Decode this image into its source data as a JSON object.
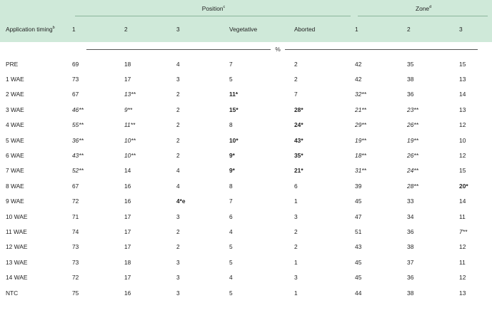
{
  "header": {
    "row_label": "Application timing",
    "row_label_sup": "b",
    "position_label": "Position",
    "position_sup": "c",
    "zone_label": "Zone",
    "zone_sup": "d",
    "columns": [
      "1",
      "2",
      "3",
      "Vegetative",
      "Aborted",
      "1",
      "2",
      "3"
    ],
    "unit": "%"
  },
  "rows": [
    {
      "label": "PRE",
      "cells": [
        {
          "v": "69"
        },
        {
          "v": "18"
        },
        {
          "v": "4"
        },
        {
          "v": "7"
        },
        {
          "v": "2"
        },
        {
          "v": "42"
        },
        {
          "v": "35"
        },
        {
          "v": "15"
        }
      ]
    },
    {
      "label": "1 WAE",
      "cells": [
        {
          "v": "73"
        },
        {
          "v": "17"
        },
        {
          "v": "3"
        },
        {
          "v": "5"
        },
        {
          "v": "2"
        },
        {
          "v": "42"
        },
        {
          "v": "38"
        },
        {
          "v": "13"
        }
      ]
    },
    {
      "label": "2 WAE",
      "cells": [
        {
          "v": "67"
        },
        {
          "v": "13**",
          "s": "it"
        },
        {
          "v": "2"
        },
        {
          "v": "11*",
          "s": "b"
        },
        {
          "v": "7"
        },
        {
          "v": "32**",
          "s": "it"
        },
        {
          "v": "36"
        },
        {
          "v": "14"
        }
      ]
    },
    {
      "label": "3 WAE",
      "cells": [
        {
          "v": "46**",
          "s": "it"
        },
        {
          "v": "9**",
          "s": "it"
        },
        {
          "v": "2"
        },
        {
          "v": "15*",
          "s": "b"
        },
        {
          "v": "28*",
          "s": "b"
        },
        {
          "v": "21**",
          "s": "it"
        },
        {
          "v": "23**",
          "s": "it"
        },
        {
          "v": "13"
        }
      ]
    },
    {
      "label": "4 WAE",
      "cells": [
        {
          "v": "55**",
          "s": "it"
        },
        {
          "v": "11**",
          "s": "it"
        },
        {
          "v": "2"
        },
        {
          "v": "8"
        },
        {
          "v": "24*",
          "s": "b"
        },
        {
          "v": "29**",
          "s": "it"
        },
        {
          "v": "26**",
          "s": "it"
        },
        {
          "v": "12"
        }
      ]
    },
    {
      "label": "5 WAE",
      "cells": [
        {
          "v": "36**",
          "s": "it"
        },
        {
          "v": "10**",
          "s": "it"
        },
        {
          "v": "2"
        },
        {
          "v": "10*",
          "s": "b"
        },
        {
          "v": "43*",
          "s": "b"
        },
        {
          "v": "19**",
          "s": "it"
        },
        {
          "v": "19**",
          "s": "it"
        },
        {
          "v": "10"
        }
      ]
    },
    {
      "label": "6 WAE",
      "cells": [
        {
          "v": "43**",
          "s": "it"
        },
        {
          "v": "10**",
          "s": "it"
        },
        {
          "v": "2"
        },
        {
          "v": "9*",
          "s": "b"
        },
        {
          "v": "35*",
          "s": "b"
        },
        {
          "v": "18**",
          "s": "it"
        },
        {
          "v": "26**",
          "s": "it"
        },
        {
          "v": "12"
        }
      ]
    },
    {
      "label": "7 WAE",
      "cells": [
        {
          "v": "52**",
          "s": "it"
        },
        {
          "v": "14"
        },
        {
          "v": "4"
        },
        {
          "v": "9*",
          "s": "b"
        },
        {
          "v": "21*",
          "s": "b"
        },
        {
          "v": "31**",
          "s": "it"
        },
        {
          "v": "24**",
          "s": "it"
        },
        {
          "v": "15"
        }
      ]
    },
    {
      "label": "8 WAE",
      "cells": [
        {
          "v": "67"
        },
        {
          "v": "16"
        },
        {
          "v": "4"
        },
        {
          "v": "8"
        },
        {
          "v": "6"
        },
        {
          "v": "39"
        },
        {
          "v": "28**",
          "s": "it"
        },
        {
          "v": "20*",
          "s": "b"
        }
      ]
    },
    {
      "label": "9 WAE",
      "cells": [
        {
          "v": "72"
        },
        {
          "v": "16"
        },
        {
          "v": "4*e",
          "s": "b"
        },
        {
          "v": "7"
        },
        {
          "v": "1"
        },
        {
          "v": "45"
        },
        {
          "v": "33"
        },
        {
          "v": "14"
        }
      ]
    },
    {
      "label": "10 WAE",
      "cells": [
        {
          "v": "71"
        },
        {
          "v": "17"
        },
        {
          "v": "3"
        },
        {
          "v": "6"
        },
        {
          "v": "3"
        },
        {
          "v": "47"
        },
        {
          "v": "34"
        },
        {
          "v": "11"
        }
      ]
    },
    {
      "label": "11 WAE",
      "cells": [
        {
          "v": "74"
        },
        {
          "v": "17"
        },
        {
          "v": "2"
        },
        {
          "v": "4"
        },
        {
          "v": "2"
        },
        {
          "v": "51"
        },
        {
          "v": "36"
        },
        {
          "v": "7**",
          "s": "it"
        }
      ]
    },
    {
      "label": "12 WAE",
      "cells": [
        {
          "v": "73"
        },
        {
          "v": "17"
        },
        {
          "v": "2"
        },
        {
          "v": "5"
        },
        {
          "v": "2"
        },
        {
          "v": "43"
        },
        {
          "v": "38"
        },
        {
          "v": "12"
        }
      ]
    },
    {
      "label": "13 WAE",
      "cells": [
        {
          "v": "73"
        },
        {
          "v": "18"
        },
        {
          "v": "3"
        },
        {
          "v": "5"
        },
        {
          "v": "1"
        },
        {
          "v": "45"
        },
        {
          "v": "37"
        },
        {
          "v": "11"
        }
      ]
    },
    {
      "label": "14 WAE",
      "cells": [
        {
          "v": "72"
        },
        {
          "v": "17"
        },
        {
          "v": "3"
        },
        {
          "v": "4"
        },
        {
          "v": "3"
        },
        {
          "v": "45"
        },
        {
          "v": "36"
        },
        {
          "v": "12"
        }
      ]
    },
    {
      "label": "NTC",
      "cells": [
        {
          "v": "75"
        },
        {
          "v": "16"
        },
        {
          "v": "3"
        },
        {
          "v": "5"
        },
        {
          "v": "1"
        },
        {
          "v": "44"
        },
        {
          "v": "38"
        },
        {
          "v": "13"
        }
      ]
    }
  ]
}
